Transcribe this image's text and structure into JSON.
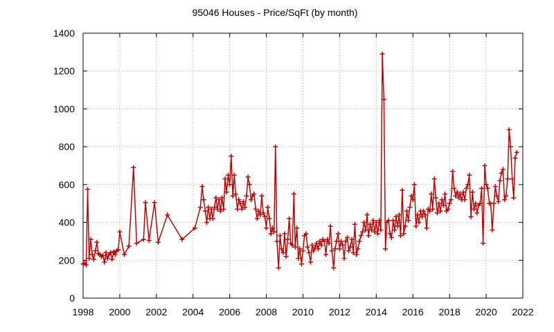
{
  "chart_data": {
    "type": "line",
    "title": "95046 Houses - Price/SqFt (by month)",
    "xlabel": "",
    "ylabel": "",
    "xlim": [
      1998,
      2022
    ],
    "ylim": [
      0,
      1400
    ],
    "x_ticks": [
      "1998",
      "2000",
      "2002",
      "2004",
      "2006",
      "2008",
      "2010",
      "2012",
      "2014",
      "2016",
      "2018",
      "2020",
      "2022"
    ],
    "y_ticks": [
      "0",
      "200",
      "400",
      "600",
      "800",
      "1000",
      "1200",
      "1400"
    ],
    "grid": true,
    "series": [
      {
        "color": "#c00000",
        "marker": "plus",
        "points": [
          [
            1998.0,
            180
          ],
          [
            1998.08,
            185
          ],
          [
            1998.17,
            175
          ],
          [
            1998.25,
            575
          ],
          [
            1998.33,
            210
          ],
          [
            1998.42,
            310
          ],
          [
            1998.5,
            230
          ],
          [
            1998.58,
            205
          ],
          [
            1998.67,
            250
          ],
          [
            1998.75,
            295
          ],
          [
            1998.83,
            235
          ],
          [
            1998.92,
            230
          ],
          [
            1999.0,
            220
          ],
          [
            1999.08,
            225
          ],
          [
            1999.17,
            190
          ],
          [
            1999.25,
            240
          ],
          [
            1999.33,
            210
          ],
          [
            1999.42,
            230
          ],
          [
            1999.5,
            240
          ],
          [
            1999.58,
            205
          ],
          [
            1999.67,
            245
          ],
          [
            1999.75,
            230
          ],
          [
            1999.83,
            250
          ],
          [
            1999.92,
            255
          ],
          [
            2000.0,
            350
          ],
          [
            2000.25,
            230
          ],
          [
            2000.5,
            275
          ],
          [
            2000.75,
            690
          ],
          [
            2000.92,
            290
          ],
          [
            2001.3,
            310
          ],
          [
            2001.4,
            505
          ],
          [
            2001.6,
            305
          ],
          [
            2001.9,
            505
          ],
          [
            2002.1,
            295
          ],
          [
            2002.6,
            440
          ],
          [
            2003.4,
            310
          ],
          [
            2004.1,
            370
          ],
          [
            2004.4,
            480
          ],
          [
            2004.5,
            590
          ],
          [
            2004.58,
            520
          ],
          [
            2004.67,
            460
          ],
          [
            2004.75,
            400
          ],
          [
            2004.83,
            480
          ],
          [
            2004.92,
            420
          ],
          [
            2005.0,
            470
          ],
          [
            2005.08,
            420
          ],
          [
            2005.17,
            480
          ],
          [
            2005.25,
            530
          ],
          [
            2005.33,
            470
          ],
          [
            2005.42,
            520
          ],
          [
            2005.5,
            460
          ],
          [
            2005.58,
            530
          ],
          [
            2005.67,
            470
          ],
          [
            2005.75,
            630
          ],
          [
            2005.83,
            560
          ],
          [
            2005.92,
            650
          ],
          [
            2006.0,
            600
          ],
          [
            2006.08,
            750
          ],
          [
            2006.17,
            540
          ],
          [
            2006.25,
            650
          ],
          [
            2006.33,
            550
          ],
          [
            2006.42,
            470
          ],
          [
            2006.5,
            520
          ],
          [
            2006.58,
            500
          ],
          [
            2006.67,
            470
          ],
          [
            2006.75,
            510
          ],
          [
            2006.83,
            480
          ],
          [
            2006.92,
            540
          ],
          [
            2007.0,
            640
          ],
          [
            2007.08,
            600
          ],
          [
            2007.17,
            520
          ],
          [
            2007.25,
            540
          ],
          [
            2007.33,
            550
          ],
          [
            2007.42,
            470
          ],
          [
            2007.5,
            420
          ],
          [
            2007.58,
            460
          ],
          [
            2007.67,
            440
          ],
          [
            2007.75,
            540
          ],
          [
            2007.83,
            450
          ],
          [
            2007.92,
            430
          ],
          [
            2008.0,
            370
          ],
          [
            2008.08,
            480
          ],
          [
            2008.17,
            420
          ],
          [
            2008.25,
            340
          ],
          [
            2008.33,
            370
          ],
          [
            2008.42,
            350
          ],
          [
            2008.5,
            800
          ],
          [
            2008.58,
            300
          ],
          [
            2008.67,
            160
          ],
          [
            2008.75,
            330
          ],
          [
            2008.83,
            260
          ],
          [
            2008.92,
            240
          ],
          [
            2009.0,
            340
          ],
          [
            2009.08,
            220
          ],
          [
            2009.17,
            310
          ],
          [
            2009.25,
            420
          ],
          [
            2009.33,
            290
          ],
          [
            2009.42,
            280
          ],
          [
            2009.5,
            550
          ],
          [
            2009.58,
            270
          ],
          [
            2009.67,
            370
          ],
          [
            2009.75,
            210
          ],
          [
            2009.83,
            260
          ],
          [
            2009.92,
            180
          ],
          [
            2010.0,
            250
          ],
          [
            2010.08,
            330
          ],
          [
            2010.17,
            340
          ],
          [
            2010.25,
            270
          ],
          [
            2010.33,
            240
          ],
          [
            2010.42,
            190
          ],
          [
            2010.5,
            280
          ],
          [
            2010.58,
            250
          ],
          [
            2010.67,
            270
          ],
          [
            2010.75,
            290
          ],
          [
            2010.83,
            260
          ],
          [
            2010.92,
            300
          ],
          [
            2011.0,
            280
          ],
          [
            2011.08,
            310
          ],
          [
            2011.17,
            300
          ],
          [
            2011.25,
            230
          ],
          [
            2011.33,
            310
          ],
          [
            2011.42,
            290
          ],
          [
            2011.5,
            380
          ],
          [
            2011.58,
            250
          ],
          [
            2011.67,
            160
          ],
          [
            2011.75,
            260
          ],
          [
            2011.83,
            300
          ],
          [
            2011.92,
            340
          ],
          [
            2012.0,
            260
          ],
          [
            2012.08,
            300
          ],
          [
            2012.17,
            280
          ],
          [
            2012.25,
            210
          ],
          [
            2012.33,
            300
          ],
          [
            2012.42,
            320
          ],
          [
            2012.5,
            250
          ],
          [
            2012.58,
            270
          ],
          [
            2012.67,
            310
          ],
          [
            2012.75,
            240
          ],
          [
            2012.83,
            390
          ],
          [
            2012.92,
            230
          ],
          [
            2013.0,
            260
          ],
          [
            2013.08,
            300
          ],
          [
            2013.17,
            330
          ],
          [
            2013.25,
            350
          ],
          [
            2013.33,
            400
          ],
          [
            2013.42,
            360
          ],
          [
            2013.5,
            440
          ],
          [
            2013.58,
            330
          ],
          [
            2013.67,
            390
          ],
          [
            2013.75,
            360
          ],
          [
            2013.83,
            410
          ],
          [
            2013.92,
            350
          ],
          [
            2014.0,
            400
          ],
          [
            2014.08,
            340
          ],
          [
            2014.17,
            410
          ],
          [
            2014.25,
            360
          ],
          [
            2014.33,
            1290
          ],
          [
            2014.42,
            1050
          ],
          [
            2014.5,
            260
          ],
          [
            2014.58,
            400
          ],
          [
            2014.67,
            410
          ],
          [
            2014.75,
            340
          ],
          [
            2014.83,
            320
          ],
          [
            2014.92,
            410
          ],
          [
            2015.0,
            360
          ],
          [
            2015.08,
            430
          ],
          [
            2015.17,
            380
          ],
          [
            2015.25,
            440
          ],
          [
            2015.33,
            330
          ],
          [
            2015.42,
            570
          ],
          [
            2015.5,
            340
          ],
          [
            2015.58,
            380
          ],
          [
            2015.67,
            460
          ],
          [
            2015.75,
            410
          ],
          [
            2015.83,
            480
          ],
          [
            2015.92,
            540
          ],
          [
            2016.0,
            520
          ],
          [
            2016.08,
            600
          ],
          [
            2016.17,
            380
          ],
          [
            2016.25,
            440
          ],
          [
            2016.33,
            400
          ],
          [
            2016.42,
            460
          ],
          [
            2016.5,
            430
          ],
          [
            2016.58,
            460
          ],
          [
            2016.67,
            440
          ],
          [
            2016.75,
            370
          ],
          [
            2016.83,
            470
          ],
          [
            2016.92,
            460
          ],
          [
            2017.0,
            550
          ],
          [
            2017.08,
            470
          ],
          [
            2017.17,
            630
          ],
          [
            2017.25,
            530
          ],
          [
            2017.33,
            450
          ],
          [
            2017.42,
            500
          ],
          [
            2017.5,
            460
          ],
          [
            2017.58,
            520
          ],
          [
            2017.67,
            490
          ],
          [
            2017.75,
            550
          ],
          [
            2017.83,
            460
          ],
          [
            2017.92,
            470
          ],
          [
            2018.0,
            500
          ],
          [
            2018.08,
            520
          ],
          [
            2018.17,
            670
          ],
          [
            2018.25,
            580
          ],
          [
            2018.33,
            540
          ],
          [
            2018.42,
            560
          ],
          [
            2018.5,
            530
          ],
          [
            2018.58,
            550
          ],
          [
            2018.67,
            520
          ],
          [
            2018.75,
            560
          ],
          [
            2018.83,
            520
          ],
          [
            2018.92,
            580
          ],
          [
            2019.0,
            600
          ],
          [
            2019.08,
            650
          ],
          [
            2019.17,
            430
          ],
          [
            2019.25,
            560
          ],
          [
            2019.33,
            470
          ],
          [
            2019.42,
            500
          ],
          [
            2019.5,
            450
          ],
          [
            2019.58,
            490
          ],
          [
            2019.67,
            500
          ],
          [
            2019.75,
            580
          ],
          [
            2019.83,
            290
          ],
          [
            2019.92,
            700
          ],
          [
            2020.0,
            600
          ],
          [
            2020.08,
            580
          ],
          [
            2020.17,
            500
          ],
          [
            2020.25,
            500
          ],
          [
            2020.33,
            360
          ],
          [
            2020.42,
            500
          ],
          [
            2020.5,
            590
          ],
          [
            2020.58,
            540
          ],
          [
            2020.67,
            510
          ],
          [
            2020.75,
            620
          ],
          [
            2020.83,
            660
          ],
          [
            2020.92,
            680
          ],
          [
            2021.0,
            520
          ],
          [
            2021.08,
            540
          ],
          [
            2021.17,
            630
          ],
          [
            2021.25,
            890
          ],
          [
            2021.33,
            800
          ],
          [
            2021.42,
            630
          ],
          [
            2021.5,
            530
          ],
          [
            2021.58,
            740
          ],
          [
            2021.67,
            770
          ]
        ]
      }
    ]
  }
}
